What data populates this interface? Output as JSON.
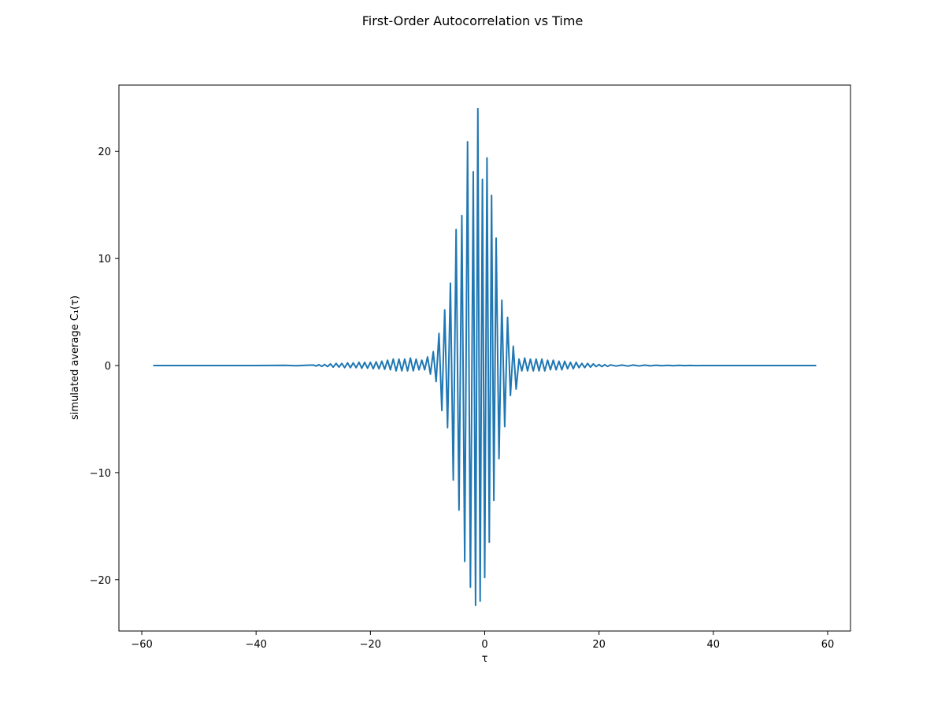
{
  "chart_data": {
    "type": "line",
    "title": "First-Order Autocorrelation vs Time",
    "xlabel": "τ",
    "ylabel": "simulated average C₁(τ)",
    "xlim": [
      -64,
      64
    ],
    "ylim": [
      -24.8,
      26.2
    ],
    "xticks": [
      -60,
      -40,
      -20,
      0,
      20,
      40,
      60
    ],
    "xtick_labels": [
      "−60",
      "−40",
      "−20",
      "0",
      "20",
      "40",
      "60"
    ],
    "yticks": [
      -20,
      -10,
      0,
      10,
      20
    ],
    "ytick_labels": [
      "−20",
      "−10",
      "0",
      "10",
      "20"
    ],
    "grid": false,
    "series": [
      {
        "color": "#1f77b4",
        "x": [
          -58,
          -40,
          -35,
          -33,
          -31,
          -30,
          -29.5,
          -29,
          -28.5,
          -28,
          -27.5,
          -27,
          -26.5,
          -26,
          -25.5,
          -25,
          -24.5,
          -24,
          -23.5,
          -23,
          -22.5,
          -22,
          -21.5,
          -21,
          -20.5,
          -20,
          -19.5,
          -19,
          -18.5,
          -18,
          -17.5,
          -17,
          -16.5,
          -16,
          -15.5,
          -15,
          -14.5,
          -14,
          -13.5,
          -13,
          -12.5,
          -12,
          -11.5,
          -11,
          -10.5,
          -10,
          -9.5,
          -9,
          -8.5,
          -8,
          -7.5,
          -7,
          -6.5,
          -6,
          -5.5,
          -5,
          -4.5,
          -4,
          -3.5,
          -3,
          -2.5,
          -2,
          -1.6,
          -1.2,
          -0.8,
          -0.4,
          0,
          0.4,
          0.8,
          1.2,
          1.6,
          2,
          2.5,
          3,
          3.5,
          4,
          4.5,
          5,
          5.5,
          6,
          6.5,
          7,
          7.5,
          8,
          8.5,
          9,
          9.5,
          10,
          10.5,
          11,
          11.5,
          12,
          12.5,
          13,
          13.5,
          14,
          14.5,
          15,
          15.5,
          16,
          16.5,
          17,
          17.5,
          18,
          18.5,
          19,
          19.5,
          20,
          20.5,
          21,
          21.5,
          22,
          23,
          24,
          25,
          26,
          27,
          28,
          29,
          30,
          31,
          32,
          33,
          34,
          35,
          36,
          37,
          38,
          40,
          45,
          58
        ],
        "y": [
          0,
          0,
          0.02,
          -0.02,
          0.03,
          0.05,
          -0.05,
          0.08,
          -0.08,
          0.1,
          -0.1,
          0.15,
          -0.15,
          0.2,
          -0.15,
          0.2,
          -0.2,
          0.25,
          -0.2,
          0.25,
          -0.2,
          0.3,
          -0.25,
          0.3,
          -0.25,
          0.3,
          -0.3,
          0.35,
          -0.3,
          0.4,
          -0.35,
          0.5,
          -0.4,
          0.6,
          -0.5,
          0.6,
          -0.5,
          0.6,
          -0.5,
          0.7,
          -0.5,
          0.6,
          -0.4,
          0.5,
          -0.4,
          0.8,
          -0.8,
          1.3,
          -1.5,
          3,
          -4.2,
          5.2,
          -5.8,
          7.7,
          -10.7,
          12.7,
          -13.5,
          14,
          -18.3,
          20.9,
          -20.7,
          18.1,
          -22.4,
          24,
          -22,
          17.4,
          -19.8,
          19.4,
          -16.5,
          15.9,
          -12.6,
          11.9,
          -8.7,
          6.1,
          -5.7,
          4.5,
          -2.8,
          1.8,
          -2.2,
          0.6,
          -0.5,
          0.7,
          -0.5,
          0.6,
          -0.5,
          0.6,
          -0.5,
          0.6,
          -0.5,
          0.5,
          -0.4,
          0.5,
          -0.4,
          0.4,
          -0.4,
          0.4,
          -0.3,
          0.3,
          -0.3,
          0.3,
          -0.2,
          0.2,
          -0.2,
          0.2,
          -0.15,
          0.15,
          -0.1,
          0.1,
          -0.1,
          0.08,
          -0.08,
          0.06,
          -0.05,
          0.05,
          -0.05,
          0.05,
          -0.04,
          0.04,
          -0.03,
          0.03,
          -0.02,
          0.02,
          -0.02,
          0.02,
          -0.01,
          0.01,
          -0.01,
          0,
          0,
          0,
          0
        ]
      }
    ]
  }
}
